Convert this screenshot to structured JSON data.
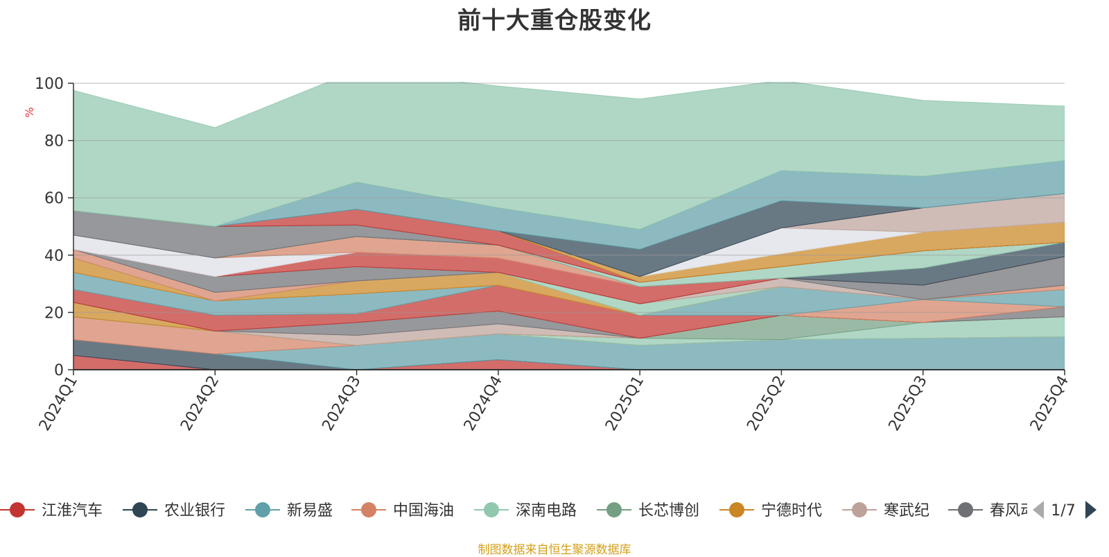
{
  "title": "前十大重仓股变化",
  "source_note": "制图数据来自恒生聚源数据库",
  "legend_page": "1/7",
  "chart_data": {
    "type": "area",
    "title": "前十大重仓股变化",
    "ylabel": "%",
    "xlabel": "",
    "ylim": [
      0,
      100
    ],
    "yticks": [
      0,
      20,
      40,
      60,
      80,
      100
    ],
    "grid": true,
    "legend_position": "bottom",
    "categories": [
      "2024Q1",
      "2024Q2",
      "2024Q3",
      "2024Q4",
      "2025Q1",
      "2025Q2",
      "2025Q3",
      "2025Q4"
    ],
    "series": [
      {
        "name": "江淮汽车",
        "color": "#c23531",
        "values": [
          5,
          0,
          0,
          3.5,
          0,
          0,
          0,
          0
        ]
      },
      {
        "name": "农业银行",
        "color": "#2f4554",
        "values": [
          5.5,
          5.5,
          0,
          0,
          0,
          0,
          0,
          0
        ]
      },
      {
        "name": "新易盛",
        "color": "#61a0a8",
        "values": [
          0,
          0,
          8.5,
          9,
          8.5,
          10.5,
          11,
          11.5
        ]
      },
      {
        "name": "中国海油",
        "color": "#d48265",
        "values": [
          8,
          8,
          0,
          0,
          0,
          0,
          0,
          0
        ]
      },
      {
        "name": "深南电路",
        "color": "#91c7ae",
        "values": [
          0,
          0,
          0,
          0,
          2.5,
          0,
          5.5,
          7
        ]
      },
      {
        "name": "长芯博创",
        "color": "#749f83",
        "values": [
          0,
          0,
          0,
          0,
          0,
          8.5,
          0,
          0
        ]
      },
      {
        "name": "宁德时代",
        "color": "#ca8622",
        "values": [
          5,
          0,
          0,
          0,
          0,
          0,
          0,
          0
        ]
      },
      {
        "name": "寒武纪",
        "color": "#bda29a",
        "values": [
          0,
          0,
          3.5,
          3.5,
          0,
          0,
          0,
          0
        ]
      },
      {
        "name": "春风动力",
        "color": "#6e7074",
        "values": [
          0,
          0,
          4.5,
          4.5,
          0,
          0,
          0,
          3.5
        ]
      }
    ],
    "extra_layers": [
      {
        "color": "#c23531",
        "values": [
          4.5,
          5.5,
          3,
          9,
          8,
          0,
          0,
          0
        ]
      },
      {
        "color": "#d48265",
        "values": [
          0,
          0,
          0,
          0,
          0,
          0,
          8,
          0
        ]
      },
      {
        "color": "#61a0a8",
        "values": [
          6,
          5,
          7,
          0,
          0,
          10,
          0,
          6
        ]
      },
      {
        "color": "#d48265",
        "values": [
          0,
          0,
          0,
          0,
          0,
          0,
          0,
          1.5
        ]
      },
      {
        "color": "#ca8622",
        "values": [
          5,
          0,
          4.5,
          4.5,
          0,
          0,
          0,
          0
        ]
      },
      {
        "color": "#91c7ae",
        "values": [
          0,
          0,
          0,
          0,
          4,
          0,
          0,
          0
        ]
      },
      {
        "color": "#d48265",
        "values": [
          3,
          3,
          0,
          0,
          0,
          0,
          0,
          0
        ]
      },
      {
        "color": "#bda29a",
        "values": [
          0,
          0,
          0,
          0,
          0,
          3,
          0,
          0
        ]
      },
      {
        "color": "#6e7074",
        "values": [
          0,
          5.5,
          5,
          0,
          0,
          0,
          5,
          10
        ]
      },
      {
        "color": "#c23531",
        "values": [
          0,
          0,
          5,
          5,
          6,
          0,
          0,
          0
        ]
      },
      {
        "color": "#dcdfe6",
        "values": [
          5,
          6.5,
          0,
          0,
          0,
          0,
          0,
          0
        ]
      },
      {
        "color": "#d48265",
        "values": [
          0,
          0,
          5.5,
          4.5,
          0,
          0,
          0,
          0
        ]
      },
      {
        "color": "#2f4554",
        "values": [
          0,
          0,
          0,
          0,
          0,
          0,
          6,
          5
        ]
      },
      {
        "color": "#91c7ae",
        "values": [
          0,
          0,
          0,
          0,
          1.5,
          4,
          6,
          0
        ]
      },
      {
        "color": "#6e7074",
        "values": [
          8.5,
          11,
          4,
          0,
          0,
          0,
          0,
          0
        ]
      },
      {
        "color": "#c23531",
        "values": [
          0,
          0,
          5.5,
          5,
          0,
          0,
          0,
          0
        ]
      },
      {
        "color": "#ca8622",
        "values": [
          0,
          0,
          0,
          0,
          2,
          4.5,
          6.5,
          7
        ]
      },
      {
        "color": "#dcdfe6",
        "values": [
          0,
          0,
          0,
          0,
          0,
          9,
          0,
          0
        ]
      },
      {
        "color": "#bda29a",
        "values": [
          0,
          0,
          0,
          0,
          0,
          0,
          8.5,
          10
        ]
      },
      {
        "color": "#2f4554",
        "values": [
          0,
          0,
          0,
          0,
          9.5,
          9.5,
          0,
          0
        ]
      },
      {
        "color": "#61a0a8",
        "values": [
          0,
          0,
          9.5,
          8,
          7,
          10.5,
          11,
          11.5
        ]
      },
      {
        "color": "#91c7ae",
        "values": [
          42,
          34.5,
          39,
          42.5,
          45.5,
          31.5,
          26.5,
          19
        ]
      }
    ]
  },
  "legend_items": [
    {
      "name": "江淮汽车",
      "color": "#c23531"
    },
    {
      "name": "农业银行",
      "color": "#2f4554"
    },
    {
      "name": "新易盛",
      "color": "#61a0a8"
    },
    {
      "name": "中国海油",
      "color": "#d48265"
    },
    {
      "name": "深南电路",
      "color": "#91c7ae"
    },
    {
      "name": "长芯博创",
      "color": "#749f83"
    },
    {
      "name": "宁德时代",
      "color": "#ca8622"
    },
    {
      "name": "寒武纪",
      "color": "#bda29a"
    },
    {
      "name": "春风动力",
      "color": "#6e7074"
    }
  ]
}
